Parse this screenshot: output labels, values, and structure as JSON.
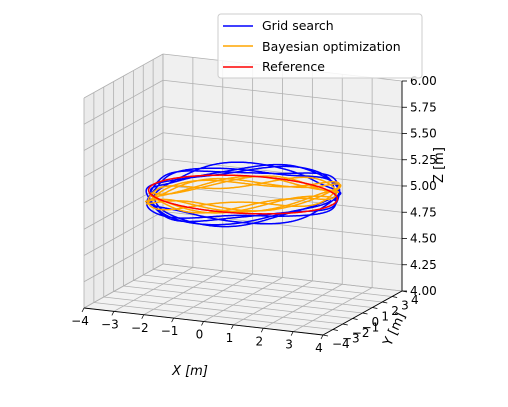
{
  "chart_data": {
    "type": "line",
    "projection": "3d",
    "xlabel": "X [m]",
    "ylabel": "Y [m]",
    "zlabel": "Z [m]",
    "xlim": [
      -4,
      4
    ],
    "ylim": [
      -4,
      4
    ],
    "zlim": [
      4.0,
      6.0
    ],
    "x_ticks": [
      "−4",
      "−3",
      "−2",
      "−1",
      "0",
      "1",
      "2",
      "3",
      "4"
    ],
    "y_ticks": [
      "−4",
      "−3",
      "−2",
      "−1",
      "0",
      "1",
      "2",
      "3",
      "4"
    ],
    "z_ticks": [
      "4.00",
      "4.25",
      "4.50",
      "4.75",
      "5.00",
      "5.25",
      "5.50",
      "5.75",
      "6.00"
    ],
    "grid": true,
    "legend_position": "top-right",
    "legend": [
      {
        "name": "Grid search",
        "color": "#0000ff"
      },
      {
        "name": "Bayesian optimization",
        "color": "#ffa500"
      },
      {
        "name": "Reference",
        "color": "#ff0000"
      }
    ],
    "series": [
      {
        "name": "Grid search",
        "shape": "circle",
        "center": [
          0,
          0,
          5.0
        ],
        "radius": 3.0,
        "z_amplitude": 0.1,
        "loops": 5
      },
      {
        "name": "Bayesian optimization",
        "shape": "circle",
        "center": [
          0,
          0,
          5.0
        ],
        "radius": 3.0,
        "z_amplitude": 0.1,
        "loops": 5
      },
      {
        "name": "Reference",
        "shape": "circle",
        "center": [
          0,
          0,
          5.0
        ],
        "radius": 3.0,
        "z_amplitude": 0.0,
        "loops": 1
      }
    ]
  }
}
